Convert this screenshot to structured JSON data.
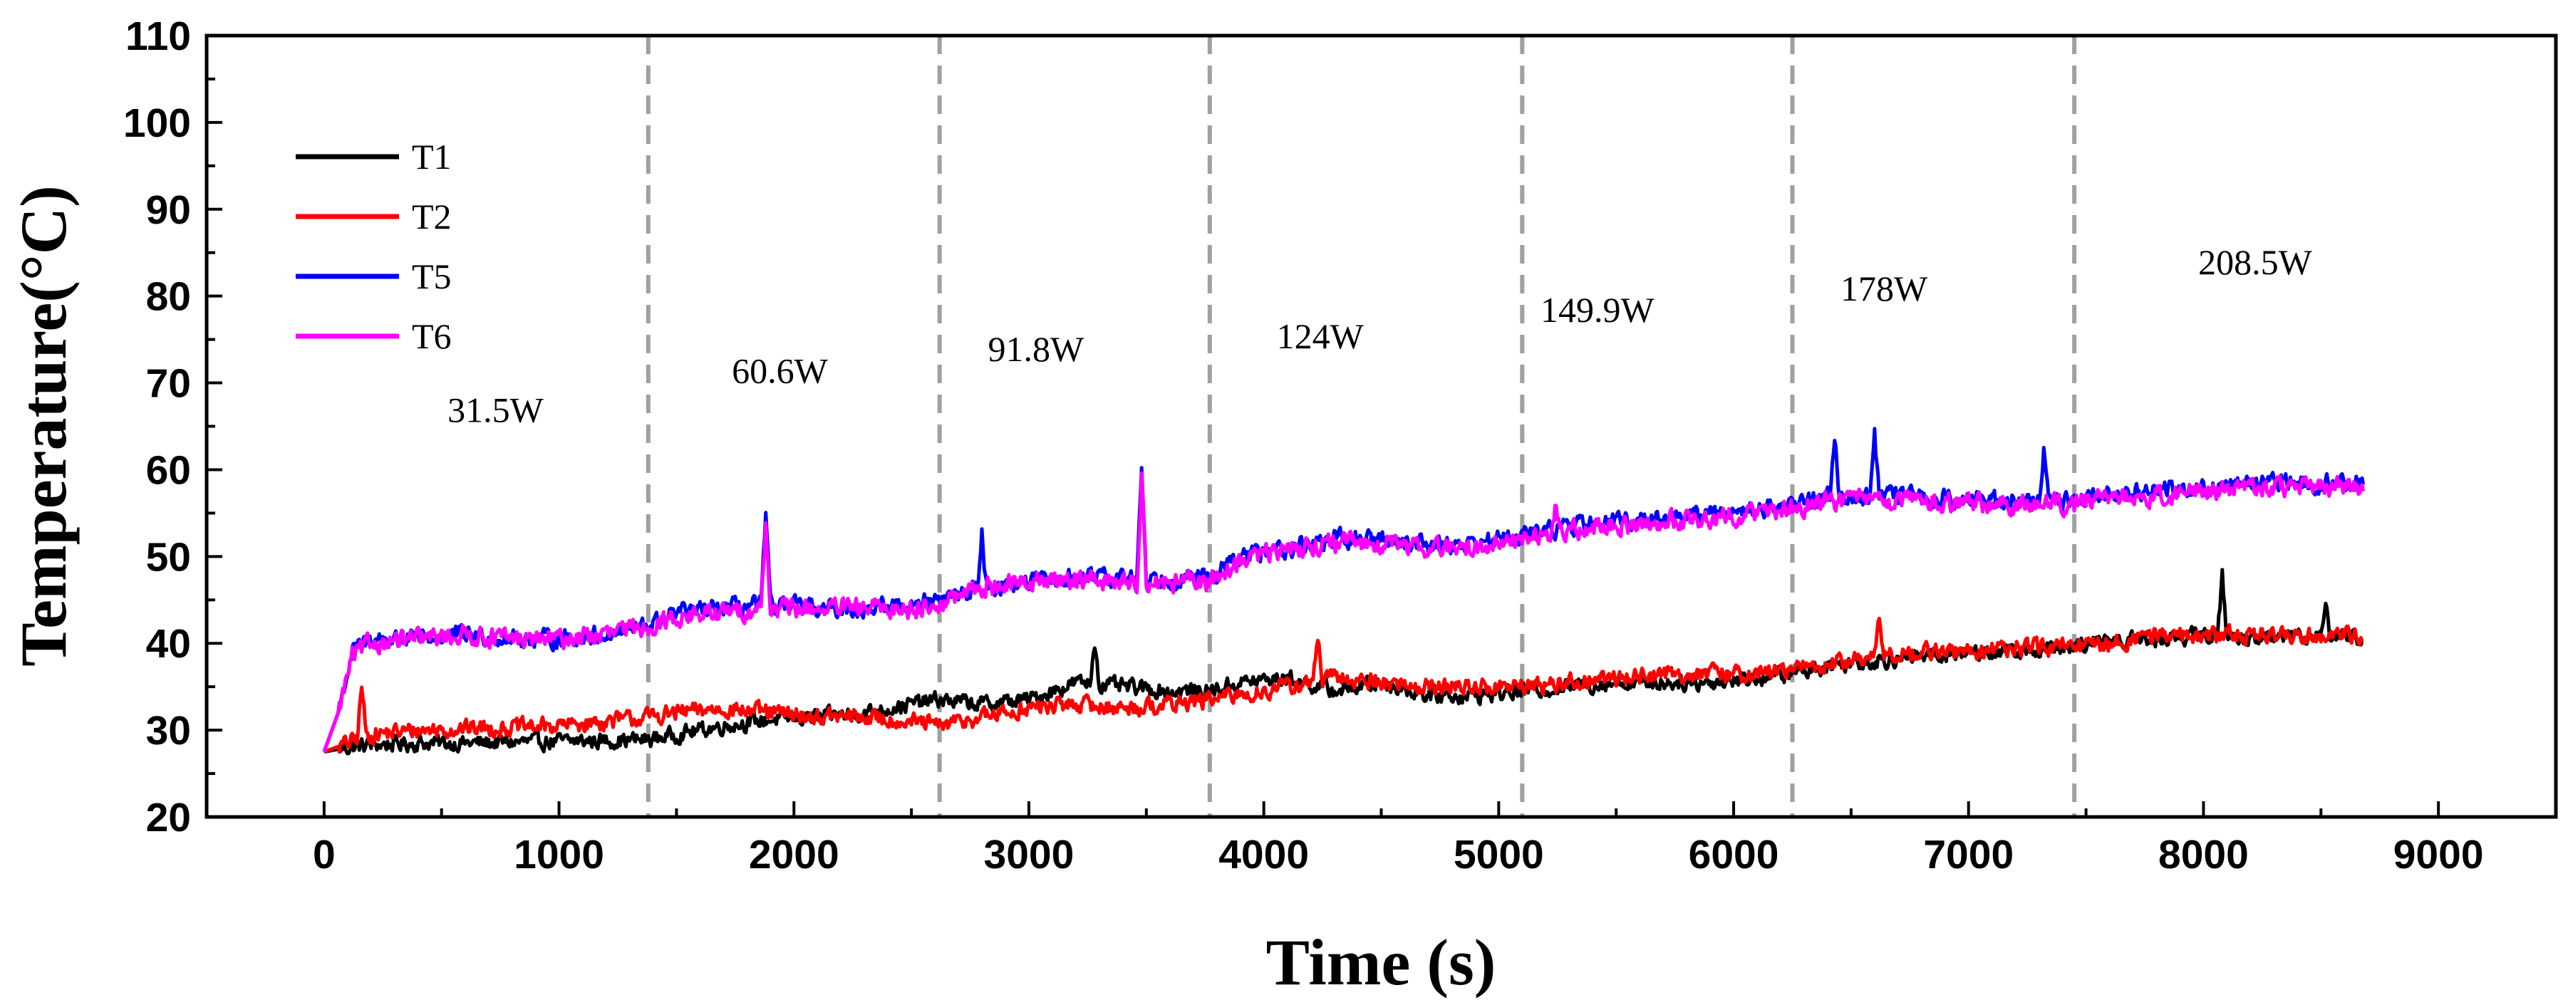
{
  "chart_data": {
    "type": "line",
    "title": "",
    "xlabel": "Time (s)",
    "ylabel": "Temperature(°C)",
    "xlim": [
      -500,
      9500
    ],
    "ylim": [
      20,
      110
    ],
    "xticks": [
      0,
      1000,
      2000,
      3000,
      4000,
      5000,
      6000,
      7000,
      8000,
      9000
    ],
    "yticks": [
      20,
      30,
      40,
      50,
      60,
      70,
      80,
      90,
      100,
      110
    ],
    "grid": false,
    "legend_position": "top-left",
    "dividers": [
      1380,
      2620,
      3770,
      5100,
      6250,
      7450
    ],
    "annotations": [
      {
        "text": "31.5W",
        "x": 730,
        "y": 65.5
      },
      {
        "text": "60.6W",
        "x": 1940,
        "y": 70
      },
      {
        "text": "91.8W",
        "x": 3030,
        "y": 72.5
      },
      {
        "text": "124W",
        "x": 4240,
        "y": 74
      },
      {
        "text": "149.9W",
        "x": 5420,
        "y": 77
      },
      {
        "text": "178W",
        "x": 6640,
        "y": 79.5
      },
      {
        "text": "208.5W",
        "x": 8220,
        "y": 82.5
      }
    ],
    "series": [
      {
        "name": "T1",
        "color": "#000000",
        "x": [
          0,
          100,
          200,
          400,
          600,
          800,
          1000,
          1200,
          1380,
          1500,
          1700,
          1900,
          2100,
          2300,
          2500,
          2620,
          2800,
          3000,
          3200,
          3400,
          3600,
          3770,
          3900,
          4100,
          4300,
          4500,
          4700,
          4900,
          5100,
          5300,
          5500,
          5700,
          5900,
          6100,
          6250,
          6400,
          6600,
          6800,
          7000,
          7200,
          7450,
          7600,
          7800,
          8000,
          8200,
          8400,
          8600,
          8680
        ],
        "y": [
          27.5,
          28,
          28.3,
          28.5,
          28.5,
          28.6,
          28.7,
          28.8,
          28.9,
          29.5,
          30.5,
          31.2,
          31.5,
          32,
          33,
          33.5,
          33,
          33.5,
          35.5,
          35,
          34.5,
          34.5,
          35.5,
          36,
          34.5,
          35.5,
          34,
          34,
          34.5,
          35,
          35.5,
          35.5,
          35.5,
          36,
          36.5,
          37.5,
          38,
          38.5,
          39,
          39,
          39.5,
          40.5,
          40.5,
          41,
          40.5,
          41,
          41,
          40.5
        ]
      },
      {
        "name": "T2",
        "color": "#ff0000",
        "x": [
          0,
          100,
          200,
          400,
          600,
          800,
          1000,
          1200,
          1380,
          1500,
          1700,
          1900,
          2100,
          2300,
          2500,
          2620,
          2800,
          3000,
          3200,
          3400,
          3600,
          3770,
          3900,
          4100,
          4300,
          4500,
          4700,
          4900,
          5100,
          5300,
          5500,
          5700,
          5900,
          6100,
          6250,
          6400,
          6600,
          6800,
          7000,
          7200,
          7450,
          7600,
          7800,
          8000,
          8200,
          8400,
          8600,
          8680
        ],
        "y": [
          27.5,
          28.5,
          29.5,
          30,
          30.2,
          30.3,
          30.5,
          31,
          31.5,
          32,
          32.5,
          32,
          31.5,
          31.5,
          31,
          30.5,
          31.5,
          32.5,
          33,
          32.5,
          33,
          33.5,
          34,
          35,
          36,
          35.5,
          35,
          35,
          35,
          35.5,
          36,
          36.5,
          36.5,
          36.5,
          37,
          37.5,
          38.5,
          39,
          39,
          39.5,
          39.5,
          40,
          41,
          41,
          41,
          41,
          41,
          41
        ]
      },
      {
        "name": "T5",
        "color": "#0000ff",
        "x": [
          0,
          60,
          120,
          200,
          400,
          600,
          800,
          1000,
          1200,
          1380,
          1500,
          1700,
          1900,
          2100,
          2300,
          2500,
          2620,
          2800,
          3000,
          3200,
          3400,
          3600,
          3770,
          3900,
          4100,
          4300,
          4500,
          4700,
          4900,
          5100,
          5300,
          5500,
          5700,
          5900,
          6100,
          6250,
          6400,
          6600,
          6800,
          7000,
          7200,
          7450,
          7600,
          7800,
          8000,
          8200,
          8400,
          8600,
          8680
        ],
        "y": [
          27.5,
          32,
          39,
          40.5,
          40.5,
          41,
          40.5,
          40.5,
          41,
          42,
          43.5,
          44,
          44.5,
          44,
          44,
          44.5,
          45,
          46.5,
          47,
          47.5,
          47.5,
          47.5,
          47.5,
          50,
          51,
          52,
          52,
          51.5,
          51.5,
          52.5,
          53.5,
          54,
          54.5,
          55,
          55.5,
          56,
          57,
          57,
          57,
          56.5,
          56.5,
          56.5,
          57.5,
          57.5,
          58,
          58.5,
          58.5,
          58.5,
          58.5
        ]
      },
      {
        "name": "T6",
        "color": "#ff00ff",
        "x": [
          0,
          60,
          120,
          200,
          400,
          600,
          800,
          1000,
          1200,
          1380,
          1500,
          1700,
          1900,
          2100,
          2300,
          2500,
          2620,
          2800,
          3000,
          3200,
          3400,
          3600,
          3770,
          3900,
          4100,
          4300,
          4500,
          4700,
          4900,
          5100,
          5300,
          5500,
          5700,
          5900,
          6100,
          6250,
          6400,
          6600,
          6800,
          7000,
          7200,
          7450,
          7600,
          7800,
          8000,
          8200,
          8400,
          8600,
          8680
        ],
        "y": [
          27.5,
          32,
          38.5,
          40,
          40.5,
          41,
          40.5,
          40.5,
          41,
          42,
          43,
          43.5,
          44,
          44,
          44,
          44,
          44.5,
          46.5,
          47,
          47.5,
          47,
          47,
          47,
          49.5,
          51,
          51.5,
          51.5,
          51,
          51,
          52,
          53,
          53.5,
          54,
          54.5,
          55,
          55.5,
          56.5,
          56.5,
          56.5,
          56,
          56,
          56,
          57,
          57,
          57.5,
          58,
          58,
          58,
          58
        ]
      }
    ]
  }
}
